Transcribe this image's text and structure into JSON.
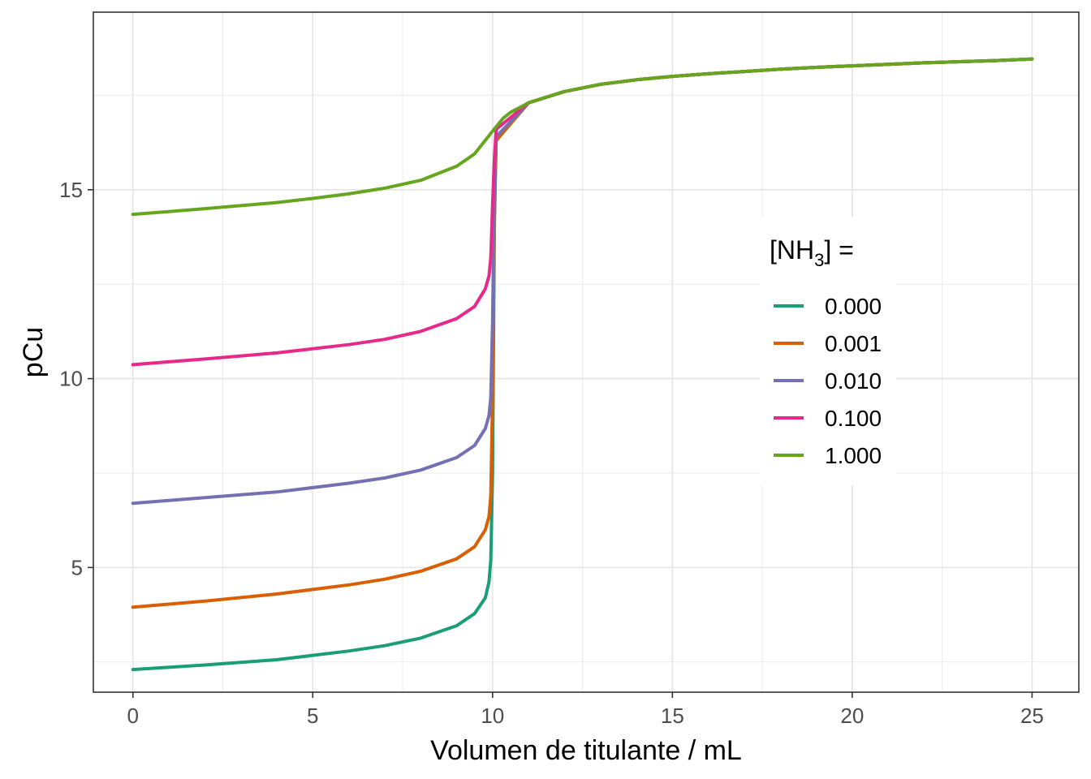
{
  "chart_data": {
    "type": "line",
    "xlabel": "Volumen de titulante / mL",
    "ylabel": "pCu",
    "xlim": [
      -1.1,
      26.3
    ],
    "ylim": [
      1.7,
      19.7
    ],
    "x_ticks": [
      0,
      5,
      10,
      15,
      20,
      25
    ],
    "y_ticks": [
      5,
      10,
      15
    ],
    "x_tick_labels": [
      "0",
      "5",
      "10",
      "15",
      "20",
      "25"
    ],
    "y_tick_labels": [
      "5",
      "10",
      "15"
    ],
    "grid": true,
    "legend": {
      "title_prefix": "[NH",
      "title_sub": "3",
      "title_suffix": "] =",
      "placement": "right"
    },
    "series": [
      {
        "name": "0.000",
        "color": "#1b9e77",
        "pre": [
          [
            0,
            2.3
          ],
          [
            2,
            2.42
          ],
          [
            4,
            2.56
          ],
          [
            6,
            2.79
          ],
          [
            7,
            2.93
          ],
          [
            8,
            3.13
          ],
          [
            9,
            3.46
          ],
          [
            9.5,
            3.78
          ],
          [
            9.8,
            4.2
          ],
          [
            9.9,
            4.62
          ],
          [
            9.95,
            5.2
          ],
          [
            10,
            7.5
          ],
          [
            10.05,
            14.0
          ],
          [
            10.1,
            16.3
          ]
        ]
      },
      {
        "name": "0.001",
        "color": "#d95f02",
        "pre": [
          [
            0,
            3.95
          ],
          [
            2,
            4.11
          ],
          [
            4,
            4.3
          ],
          [
            6,
            4.54
          ],
          [
            7,
            4.69
          ],
          [
            8,
            4.9
          ],
          [
            9,
            5.23
          ],
          [
            9.5,
            5.55
          ],
          [
            9.8,
            6.0
          ],
          [
            9.9,
            6.35
          ],
          [
            9.95,
            6.9
          ],
          [
            10,
            9.5
          ],
          [
            10.05,
            14.5
          ],
          [
            10.1,
            16.3
          ]
        ]
      },
      {
        "name": "0.010",
        "color": "#7570b3",
        "pre": [
          [
            0,
            6.7
          ],
          [
            2,
            6.85
          ],
          [
            4,
            7.0
          ],
          [
            6,
            7.23
          ],
          [
            7,
            7.37
          ],
          [
            8,
            7.58
          ],
          [
            9,
            7.91
          ],
          [
            9.5,
            8.23
          ],
          [
            9.8,
            8.68
          ],
          [
            9.9,
            9.02
          ],
          [
            9.95,
            9.5
          ],
          [
            10,
            11.5
          ],
          [
            10.05,
            15.0
          ],
          [
            10.1,
            16.4
          ]
        ]
      },
      {
        "name": "0.100",
        "color": "#e7298a",
        "pre": [
          [
            0,
            10.37
          ],
          [
            2,
            10.52
          ],
          [
            4,
            10.68
          ],
          [
            6,
            10.9
          ],
          [
            7,
            11.04
          ],
          [
            8,
            11.25
          ],
          [
            9,
            11.59
          ],
          [
            9.5,
            11.91
          ],
          [
            9.8,
            12.38
          ],
          [
            9.9,
            12.72
          ],
          [
            9.95,
            13.2
          ],
          [
            10,
            14.6
          ],
          [
            10.05,
            15.8
          ],
          [
            10.1,
            16.6
          ]
        ]
      },
      {
        "name": "1.000",
        "color": "#66a61e",
        "pre": [
          [
            0,
            14.35
          ],
          [
            1,
            14.42
          ],
          [
            2,
            14.5
          ],
          [
            3,
            14.58
          ],
          [
            4,
            14.66
          ],
          [
            5,
            14.77
          ],
          [
            6,
            14.89
          ],
          [
            7,
            15.04
          ],
          [
            8,
            15.25
          ],
          [
            9,
            15.62
          ],
          [
            9.5,
            15.95
          ],
          [
            10,
            16.55
          ],
          [
            10.3,
            16.9
          ],
          [
            10.5,
            17.05
          ]
        ]
      }
    ],
    "post": [
      [
        10.5,
        17.05
      ],
      [
        11,
        17.3
      ],
      [
        12,
        17.6
      ],
      [
        13,
        17.79
      ],
      [
        14,
        17.91
      ],
      [
        15,
        18.0
      ],
      [
        16,
        18.07
      ],
      [
        17,
        18.13
      ],
      [
        18,
        18.19
      ],
      [
        19,
        18.24
      ],
      [
        20,
        18.28
      ],
      [
        22,
        18.36
      ],
      [
        24,
        18.42
      ],
      [
        25,
        18.46
      ]
    ]
  }
}
